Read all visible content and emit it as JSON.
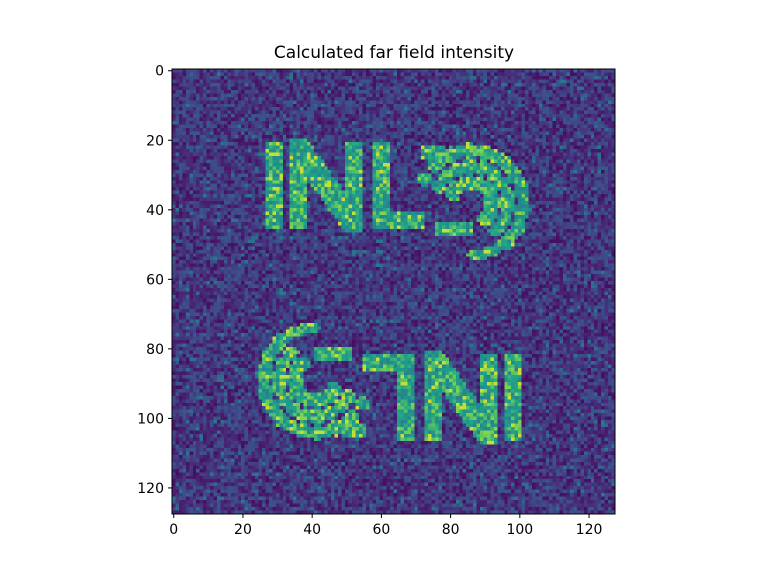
{
  "chart_data": {
    "type": "heatmap",
    "title": "Calculated far field intensity",
    "xlabel": "",
    "ylabel": "",
    "xlim": [
      -0.5,
      127.5
    ],
    "ylim": [
      127.5,
      -0.5
    ],
    "x_ticks": [
      0,
      20,
      40,
      60,
      80,
      100,
      120
    ],
    "y_ticks": [
      0,
      20,
      40,
      60,
      80,
      100,
      120
    ],
    "grid": false,
    "colormap": "viridis",
    "colors": {
      "background_low": "#3b2f7f",
      "background_mid": "#31518c",
      "feature_mid": "#22a884",
      "feature_high": "#bddf26"
    },
    "image_size": [
      128,
      128
    ],
    "features": [
      {
        "text": "INL",
        "orientation": "upright",
        "rows": [
          21,
          45
        ],
        "cols": [
          27,
          72
        ]
      },
      {
        "text": "wheat-emblem",
        "orientation": "upright",
        "rows": [
          20,
          48
        ],
        "cols": [
          71,
          99
        ]
      },
      {
        "text": "INL",
        "orientation": "rotated-180",
        "rows": [
          82,
          108
        ],
        "cols": [
          56,
          102
        ]
      },
      {
        "text": "wheat-emblem",
        "orientation": "rotated-180",
        "rows": [
          80,
          108
        ],
        "cols": [
          29,
          57
        ]
      }
    ]
  }
}
